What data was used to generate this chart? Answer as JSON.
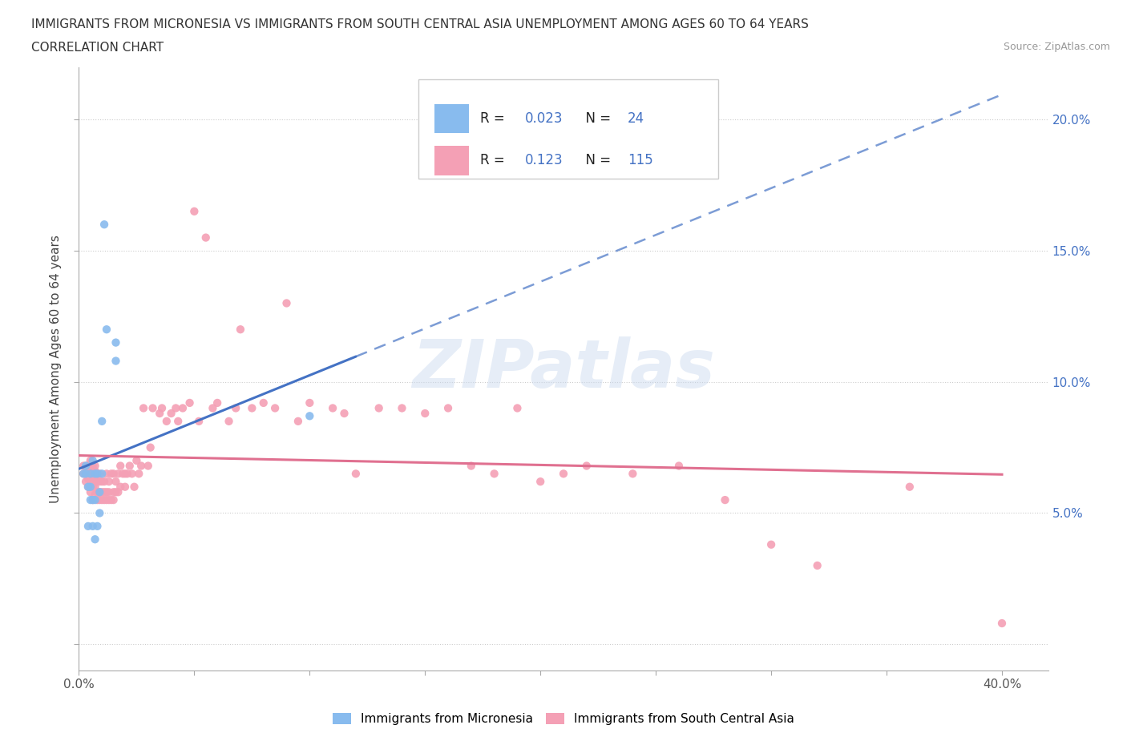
{
  "title_line1": "IMMIGRANTS FROM MICRONESIA VS IMMIGRANTS FROM SOUTH CENTRAL ASIA UNEMPLOYMENT AMONG AGES 60 TO 64 YEARS",
  "title_line2": "CORRELATION CHART",
  "source_text": "Source: ZipAtlas.com",
  "ylabel": "Unemployment Among Ages 60 to 64 years",
  "xlim": [
    0.0,
    0.42
  ],
  "ylim": [
    -0.01,
    0.22
  ],
  "color_micronesia": "#88bbee",
  "color_south_central_asia": "#f4a0b5",
  "color_trend_micronesia": "#4472c4",
  "color_trend_south_asia": "#e07090",
  "label_micronesia": "Immigrants from Micronesia",
  "label_south_asia": "Immigrants from South Central Asia",
  "watermark": "ZIPatlas",
  "micronesia_x": [
    0.002,
    0.003,
    0.003,
    0.004,
    0.004,
    0.005,
    0.005,
    0.005,
    0.006,
    0.006,
    0.006,
    0.007,
    0.007,
    0.007,
    0.008,
    0.008,
    0.009,
    0.009,
    0.01,
    0.01,
    0.011,
    0.012,
    0.016,
    0.016,
    0.1
  ],
  "micronesia_y": [
    0.065,
    0.065,
    0.068,
    0.045,
    0.06,
    0.055,
    0.06,
    0.065,
    0.045,
    0.055,
    0.07,
    0.04,
    0.055,
    0.065,
    0.045,
    0.065,
    0.05,
    0.058,
    0.065,
    0.085,
    0.16,
    0.12,
    0.115,
    0.108,
    0.087
  ],
  "south_asia_x": [
    0.002,
    0.002,
    0.003,
    0.003,
    0.003,
    0.004,
    0.004,
    0.004,
    0.004,
    0.005,
    0.005,
    0.005,
    0.005,
    0.005,
    0.006,
    0.006,
    0.006,
    0.006,
    0.006,
    0.007,
    0.007,
    0.007,
    0.007,
    0.007,
    0.008,
    0.008,
    0.008,
    0.008,
    0.009,
    0.009,
    0.009,
    0.009,
    0.01,
    0.01,
    0.01,
    0.011,
    0.011,
    0.011,
    0.012,
    0.012,
    0.012,
    0.013,
    0.013,
    0.013,
    0.014,
    0.014,
    0.015,
    0.015,
    0.015,
    0.016,
    0.016,
    0.017,
    0.017,
    0.018,
    0.018,
    0.019,
    0.02,
    0.02,
    0.021,
    0.022,
    0.023,
    0.024,
    0.025,
    0.026,
    0.027,
    0.028,
    0.03,
    0.031,
    0.032,
    0.035,
    0.036,
    0.038,
    0.04,
    0.042,
    0.043,
    0.045,
    0.048,
    0.05,
    0.052,
    0.055,
    0.058,
    0.06,
    0.065,
    0.068,
    0.07,
    0.075,
    0.08,
    0.085,
    0.09,
    0.095,
    0.1,
    0.11,
    0.115,
    0.12,
    0.13,
    0.14,
    0.15,
    0.16,
    0.17,
    0.18,
    0.19,
    0.2,
    0.21,
    0.22,
    0.24,
    0.26,
    0.28,
    0.3,
    0.32,
    0.36,
    0.4
  ],
  "south_asia_y": [
    0.065,
    0.068,
    0.062,
    0.065,
    0.068,
    0.06,
    0.063,
    0.066,
    0.068,
    0.058,
    0.062,
    0.065,
    0.067,
    0.07,
    0.055,
    0.06,
    0.063,
    0.066,
    0.068,
    0.057,
    0.06,
    0.063,
    0.066,
    0.068,
    0.055,
    0.058,
    0.062,
    0.065,
    0.055,
    0.058,
    0.062,
    0.065,
    0.055,
    0.058,
    0.062,
    0.055,
    0.058,
    0.062,
    0.055,
    0.058,
    0.065,
    0.055,
    0.058,
    0.062,
    0.055,
    0.065,
    0.055,
    0.058,
    0.065,
    0.058,
    0.062,
    0.058,
    0.065,
    0.06,
    0.068,
    0.065,
    0.06,
    0.065,
    0.065,
    0.068,
    0.065,
    0.06,
    0.07,
    0.065,
    0.068,
    0.09,
    0.068,
    0.075,
    0.09,
    0.088,
    0.09,
    0.085,
    0.088,
    0.09,
    0.085,
    0.09,
    0.092,
    0.165,
    0.085,
    0.155,
    0.09,
    0.092,
    0.085,
    0.09,
    0.12,
    0.09,
    0.092,
    0.09,
    0.13,
    0.085,
    0.092,
    0.09,
    0.088,
    0.065,
    0.09,
    0.09,
    0.088,
    0.09,
    0.068,
    0.065,
    0.09,
    0.062,
    0.065,
    0.068,
    0.065,
    0.068,
    0.055,
    0.038,
    0.03,
    0.06,
    0.008
  ]
}
